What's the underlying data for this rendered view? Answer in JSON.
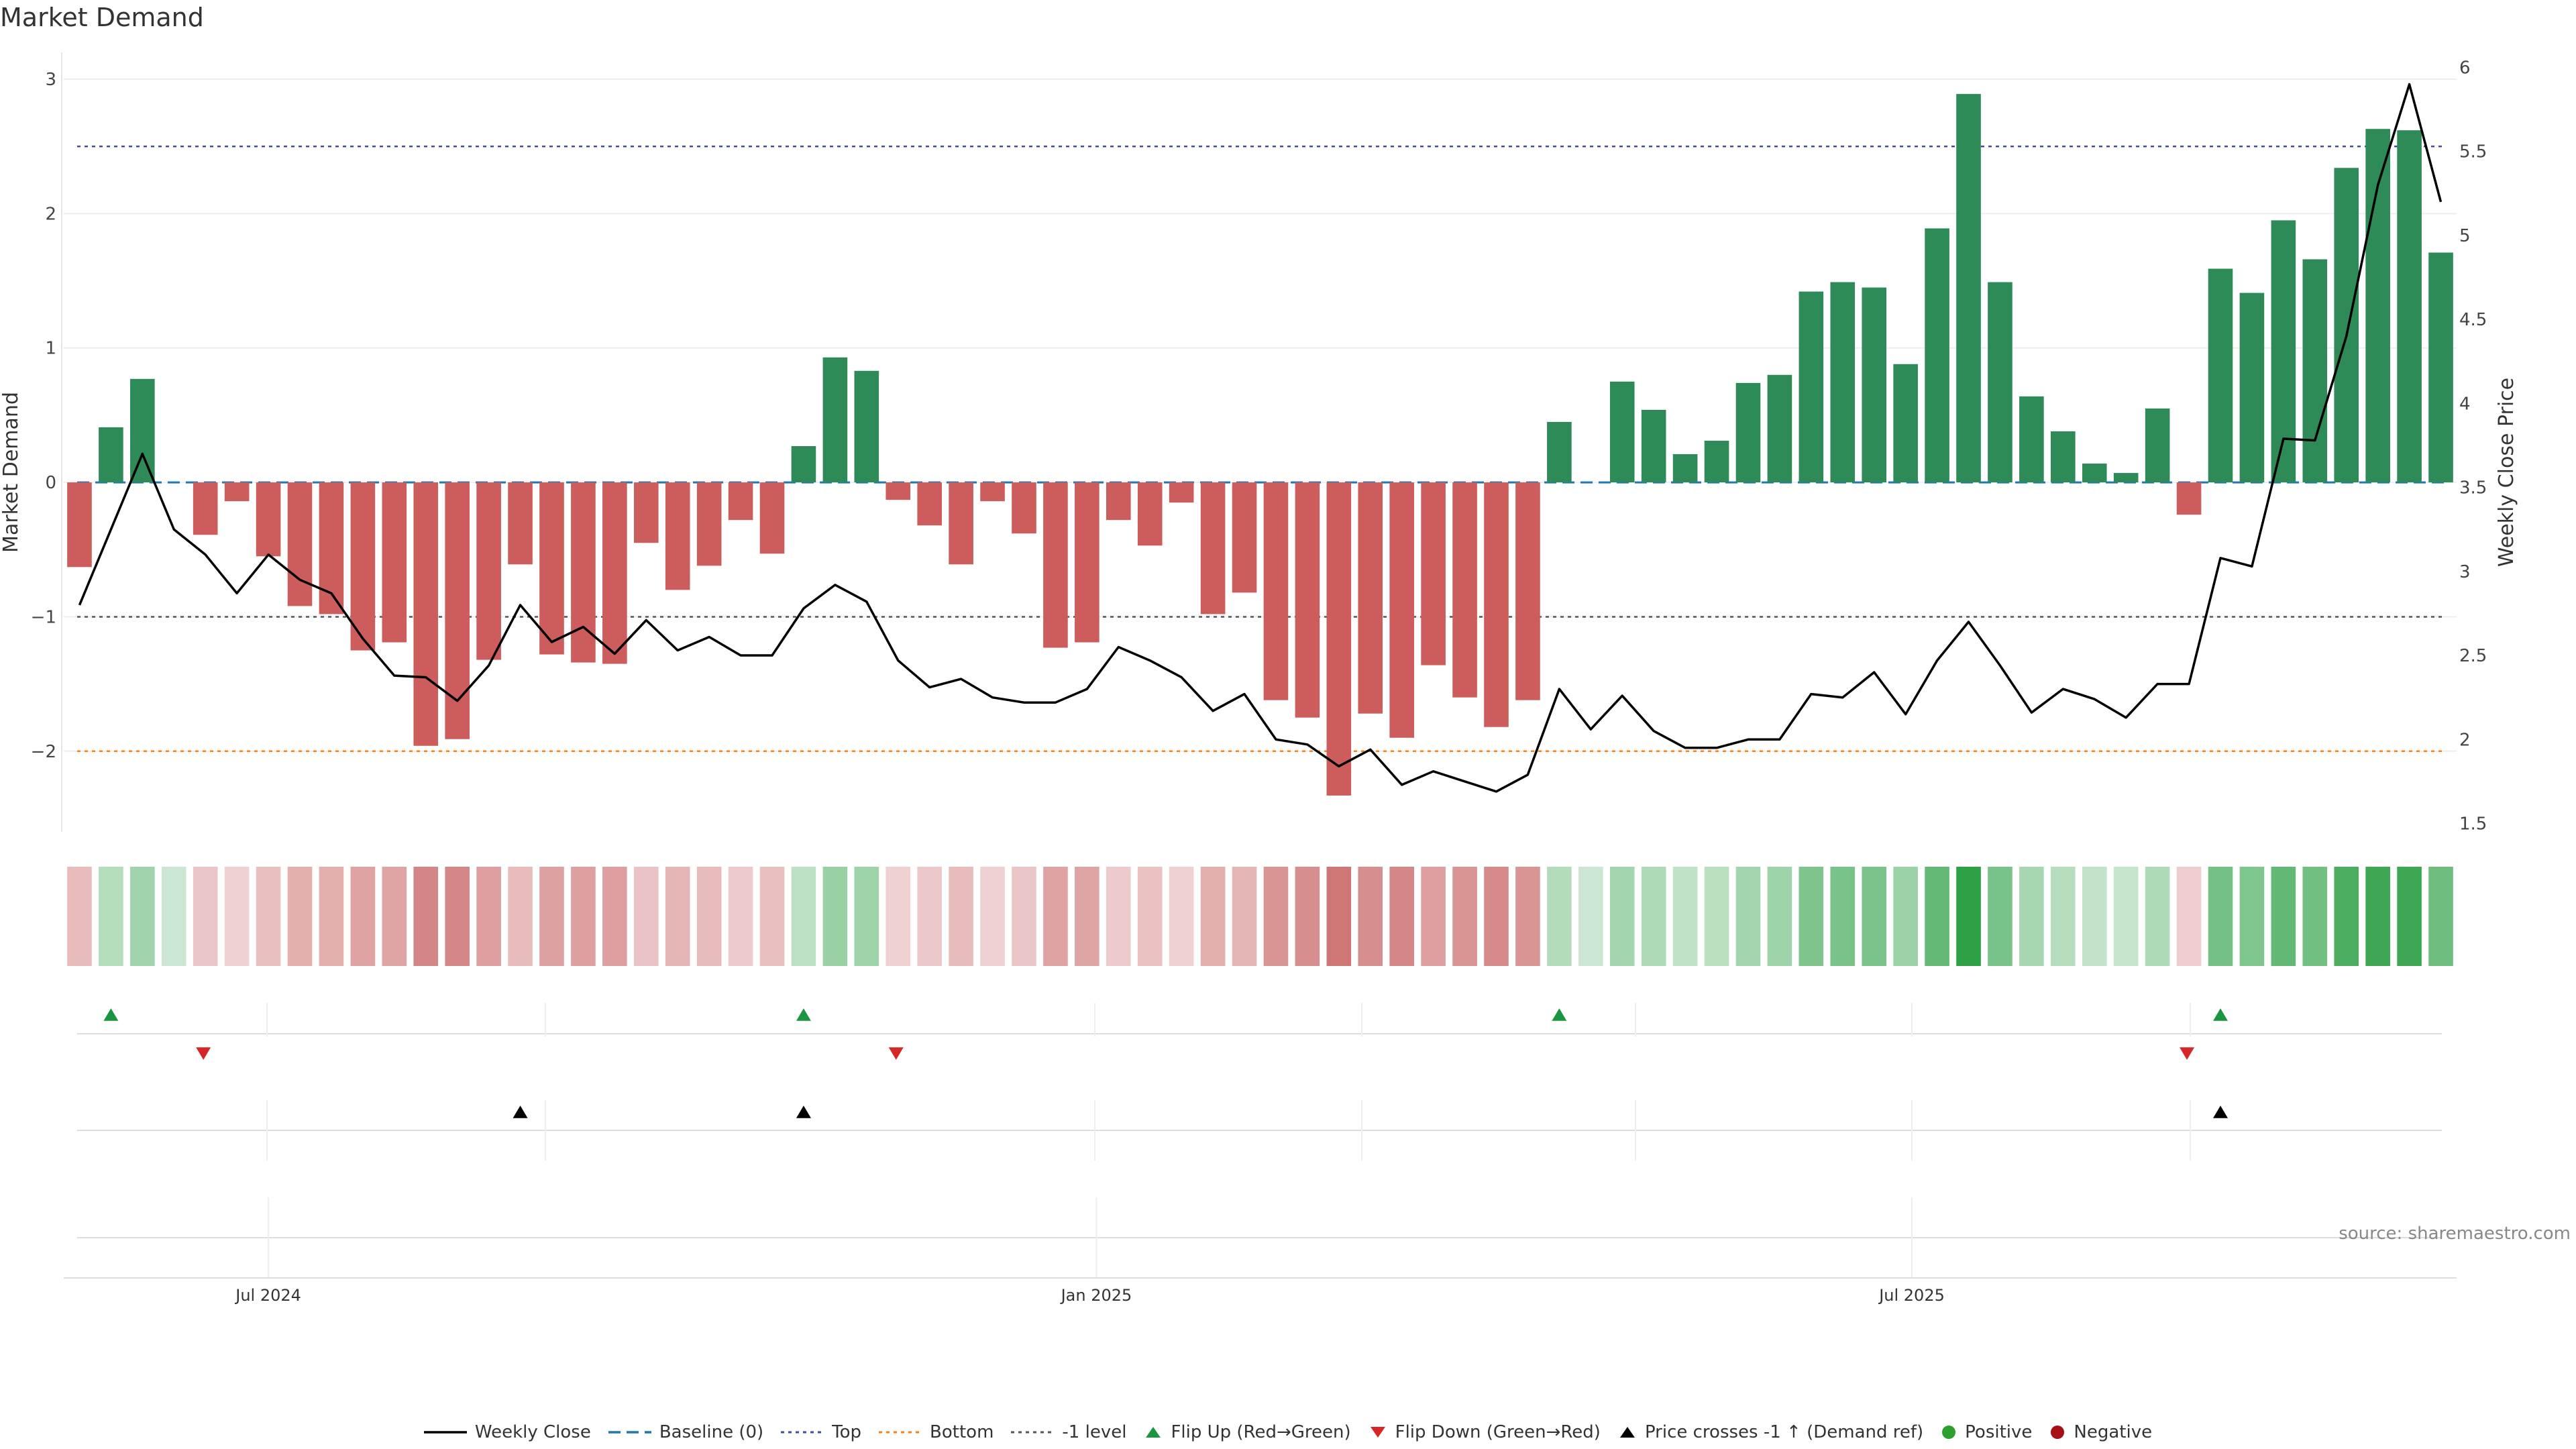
{
  "title": "Market Demand",
  "source": "source: sharemaestro.com",
  "colors": {
    "positive_bar": "#2e8b57",
    "negative_bar": "#cd5c5c",
    "price_line": "#000000",
    "baseline": "#1f77b4",
    "top_line": "#3f4fa0",
    "bottom_line": "#ff7f0e",
    "minus1_line": "#555555",
    "flip_up": "#1a9641",
    "flip_down": "#d62728",
    "cross_marker": "#000000",
    "positive_dot": "#2ca02c",
    "negative_dot": "#a50f15"
  },
  "legend": [
    {
      "key": "weekly_close",
      "label": "Weekly Close"
    },
    {
      "key": "baseline",
      "label": "Baseline (0)"
    },
    {
      "key": "top",
      "label": "Top"
    },
    {
      "key": "bottom",
      "label": "Bottom"
    },
    {
      "key": "minus1",
      "label": "-1 level"
    },
    {
      "key": "flip_up",
      "label": "Flip Up (Red→Green)"
    },
    {
      "key": "flip_down",
      "label": "Flip Down (Green→Red)"
    },
    {
      "key": "cross",
      "label": "Price crosses -1 ↑ (Demand ref)"
    },
    {
      "key": "positive",
      "label": "Positive"
    },
    {
      "key": "negative",
      "label": "Negative"
    }
  ],
  "chart_data": {
    "type": "bar",
    "title": "Market Demand",
    "ylabel": "Market Demand",
    "y2label": "Weekly Close Price",
    "ylim": [
      -2.6,
      3.15
    ],
    "y2lim": [
      1.45,
      6.05
    ],
    "yticks": [
      -2,
      -1,
      0,
      1,
      2,
      3
    ],
    "ytick_labels": [
      "−2",
      "−1",
      "0",
      "1",
      "2",
      "3"
    ],
    "y2ticks": [
      1.5,
      2,
      2.5,
      3,
      3.5,
      4,
      4.5,
      5,
      5.5,
      6
    ],
    "y2tick_labels": [
      "1.5",
      "2",
      "2.5",
      "3",
      "3.5",
      "4",
      "4.5",
      "5",
      "5.5",
      "6"
    ],
    "x_ticks": [
      {
        "index": 6,
        "label": "Jul 2024"
      },
      {
        "index": 32.3,
        "label": "Jan 2025"
      },
      {
        "index": 58.2,
        "label": "Jul 2025"
      }
    ],
    "reference_lines": {
      "baseline": 0,
      "top": 2.5,
      "bottom": -2.0,
      "minus1": -1.0
    },
    "demand": [
      -0.63,
      0.41,
      0.77,
      0.0,
      -0.39,
      -0.14,
      -0.55,
      -0.92,
      -0.98,
      -1.25,
      -1.19,
      -1.96,
      -1.91,
      -1.32,
      -0.61,
      -1.28,
      -1.34,
      -1.35,
      -0.45,
      -0.8,
      -0.62,
      -0.28,
      -0.53,
      0.27,
      0.93,
      0.83,
      -0.13,
      -0.32,
      -0.61,
      -0.14,
      -0.38,
      -1.23,
      -1.19,
      -0.28,
      -0.47,
      -0.15,
      -0.98,
      -0.82,
      -1.62,
      -1.75,
      -2.33,
      -1.72,
      -1.9,
      -1.36,
      -1.6,
      -1.82,
      -1.62,
      0.45,
      0.0,
      0.75,
      0.54,
      0.21,
      0.31,
      0.74,
      0.8,
      1.42,
      1.49,
      1.45,
      0.88,
      1.89,
      2.89,
      1.49,
      0.64,
      0.38,
      0.14,
      0.07,
      0.55,
      -0.24,
      1.59,
      1.41,
      1.95,
      1.66,
      2.34,
      2.63,
      2.62,
      1.71
    ],
    "price": [
      2.8,
      3.25,
      3.7,
      3.25,
      3.1,
      2.87,
      3.1,
      2.95,
      2.87,
      2.6,
      2.38,
      2.37,
      2.23,
      2.44,
      2.8,
      2.58,
      2.67,
      2.51,
      2.71,
      2.53,
      2.61,
      2.5,
      2.5,
      2.78,
      2.92,
      2.82,
      2.47,
      2.31,
      2.36,
      2.25,
      2.22,
      2.22,
      2.3,
      2.55,
      2.47,
      2.37,
      2.17,
      2.27,
      2.0,
      1.97,
      1.84,
      1.94,
      1.73,
      1.81,
      1.75,
      1.69,
      1.79,
      2.3,
      2.06,
      2.26,
      2.05,
      1.95,
      1.95,
      2.0,
      2.0,
      2.27,
      2.25,
      2.4,
      2.15,
      2.47,
      2.7,
      2.44,
      2.16,
      2.3,
      2.24,
      2.13,
      2.33,
      2.33,
      3.08,
      3.03,
      3.79,
      3.78,
      4.4,
      5.3,
      5.9,
      5.2
    ],
    "heat_strip": "intensity of each bar's demand value shown as a colored cell, same sign/colour as bars",
    "flip_up_indices": [
      1,
      23,
      47,
      68
    ],
    "flip_down_indices": [
      4,
      26,
      67
    ],
    "price_cross_indices": [
      14,
      23,
      68
    ]
  }
}
